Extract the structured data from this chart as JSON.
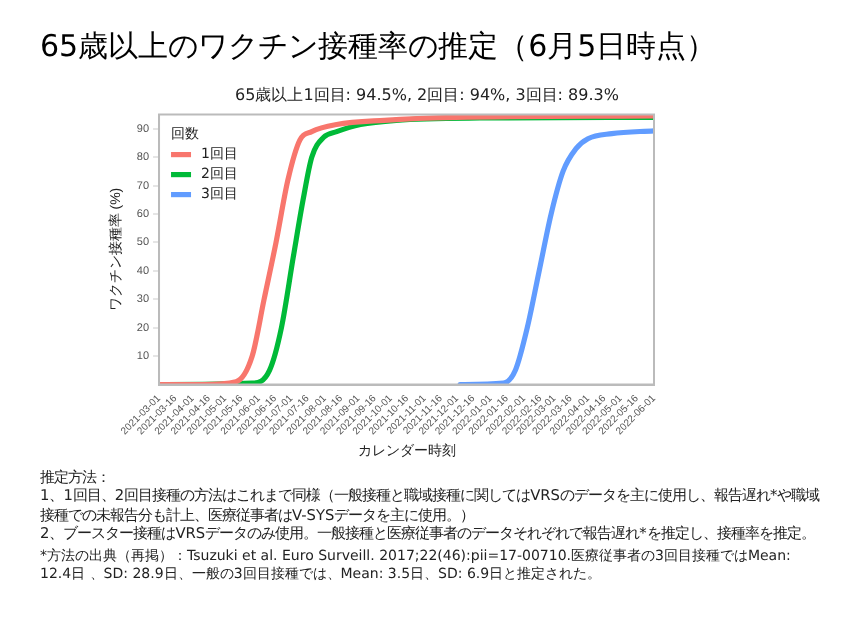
{
  "chart_data": {
    "type": "line",
    "title": "65歳以上のワクチン接種率の推定（6月5日時点）",
    "subtitle": "65歳以上1回目: 94.5%, 2回目: 94%, 3回目: 89.3%",
    "xlabel": "カレンダー時刻",
    "ylabel": "ワクチン接種率 (%)",
    "legend_title": "回数",
    "legend": "top left",
    "grid": false,
    "marker": "none",
    "line_style": "solid",
    "ylim": [
      0,
      95
    ],
    "yticks": [
      10,
      20,
      30,
      40,
      50,
      60,
      70,
      80,
      90
    ],
    "xlim": [
      "2021-03-01",
      "2022-06-01"
    ],
    "xticks": [
      {
        "value": "2021-03-01",
        "label": "2021-03-01"
      },
      {
        "value": "2021-03-16",
        "label": "2021-03-16"
      },
      {
        "value": "2021-04-01",
        "label": "2021-04-01"
      },
      {
        "value": "2021-04-16",
        "label": "2021-04-16"
      },
      {
        "value": "2021-05-01",
        "label": "2021-05-01"
      },
      {
        "value": "2021-05-16",
        "label": "2021-05-16"
      },
      {
        "value": "2021-06-01",
        "label": "2021-06-01"
      },
      {
        "value": "2021-06-16",
        "label": "2021-06-16"
      },
      {
        "value": "2021-07-01",
        "label": "2021-07-01"
      },
      {
        "value": "2021-07-16",
        "label": "2021-07-16"
      },
      {
        "value": "2021-08-01",
        "label": "2021-08-01"
      },
      {
        "value": "2021-08-16",
        "label": "2021-08-16"
      },
      {
        "value": "2021-09-01",
        "label": "2021-09-01"
      },
      {
        "value": "2021-09-16",
        "label": "2021-09-16"
      },
      {
        "value": "2021-10-01",
        "label": "2021-10-01"
      },
      {
        "value": "2021-10-16",
        "label": "2021-10-16"
      },
      {
        "value": "2021-11-01",
        "label": "2021-11-01"
      },
      {
        "value": "2021-11-16",
        "label": "2021-11-16"
      },
      {
        "value": "2021-12-01",
        "label": "2021-12-01"
      },
      {
        "value": "2021-12-16",
        "label": "2021-12-16"
      },
      {
        "value": "2022-01-01",
        "label": "2022-01-01"
      },
      {
        "value": "2022-01-16",
        "label": "2022-01-16"
      },
      {
        "value": "2022-02-01",
        "label": "2022-02-01"
      },
      {
        "value": "2022-02-16",
        "label": "2022-02-16"
      },
      {
        "value": "2022-03-01",
        "label": "2022-03-01"
      },
      {
        "value": "2022-03-16",
        "label": "2022-03-16"
      },
      {
        "value": "2022-04-01",
        "label": "2022-04-01"
      },
      {
        "value": "2022-04-16",
        "label": "2022-04-16"
      },
      {
        "value": "2022-05-01",
        "label": "2022-05-01"
      },
      {
        "value": "2022-05-16",
        "label": "2022-05-16"
      },
      {
        "value": "2022-06-01",
        "label": "2022-06-01"
      }
    ],
    "series": [
      {
        "name": "1回目",
        "color": "#f8766d",
        "x": [
          "2021-03-01",
          "2021-04-10",
          "2021-05-11",
          "2021-05-26",
          "2021-06-06",
          "2021-06-17",
          "2021-06-28",
          "2021-07-09",
          "2021-07-20",
          "2021-08-12",
          "2021-09-25",
          "2021-11-30",
          "2022-06-01"
        ],
        "values": [
          0,
          0,
          1,
          10,
          30,
          50,
          72,
          86,
          89,
          91.5,
          93,
          94,
          94.5
        ]
      },
      {
        "name": "2回目",
        "color": "#00ba38",
        "x": [
          "2021-03-01",
          "2021-05-26",
          "2021-06-11",
          "2021-06-22",
          "2021-07-03",
          "2021-07-12",
          "2021-07-20",
          "2021-07-31",
          "2021-08-12",
          "2021-09-03",
          "2021-10-06",
          "2021-12-22",
          "2022-06-01"
        ],
        "values": [
          0,
          0.5,
          5,
          20,
          45,
          65,
          80,
          87,
          89,
          91.5,
          93,
          93.8,
          94
        ]
      },
      {
        "name": "3回目",
        "color": "#619cff",
        "x": [
          "2021-12-04",
          "2022-01-13",
          "2022-01-24",
          "2022-02-04",
          "2022-02-15",
          "2022-02-26",
          "2022-03-09",
          "2022-03-21",
          "2022-04-01",
          "2022-04-23",
          "2022-06-01"
        ],
        "values": [
          0,
          0.5,
          5,
          20,
          40,
          60,
          75,
          83,
          86.5,
          88.3,
          89.3
        ]
      }
    ],
    "annotations": [
      "推定方法：",
      "1、1回目、2回目接種の方法はこれまで同様（一般接種と職域接種に関してはVRSのデータを主に使用し、報告遅れ*や職域接種での未報告分も計上、医療従事者はV-SYSデータを主に使用。）",
      "2、ブースター接種はVRSデータのみ使用。一般接種と医療従事者のデータそれぞれで報告遅れ*を推定し、接種率を推定。",
      "*方法の出典（再掲）：Tsuzuki et al. Euro Surveill. 2017;22(46):pii=17-00710.医療従事者の3回目接種ではMean: 12.4日 、SD: 28.9日、一般の3回目接種では、Mean: 3.5日、SD: 6.9日と推定された。"
    ]
  }
}
